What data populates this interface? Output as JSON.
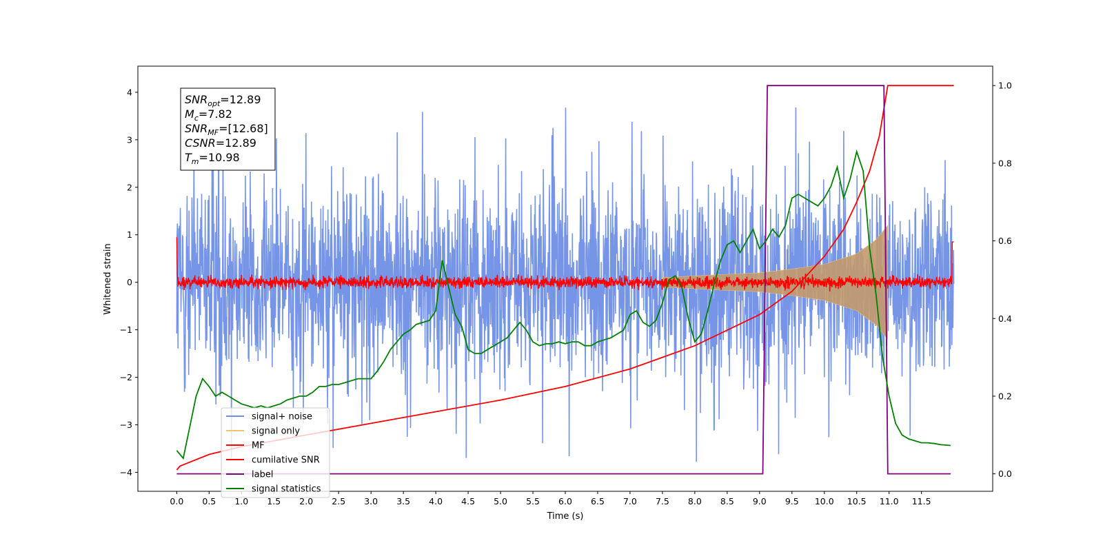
{
  "chart_data": {
    "type": "line",
    "xlabel": "Time (s)",
    "ylabel": "Whitened strain",
    "xlim": [
      -0.6,
      12.6
    ],
    "ylim": [
      -4.4,
      4.55
    ],
    "y2lim": [
      -0.045,
      1.05
    ],
    "x_ticks": [
      "0.0",
      "0.5",
      "1.0",
      "1.5",
      "2.0",
      "2.5",
      "3.0",
      "3.5",
      "4.0",
      "4.5",
      "5.0",
      "5.5",
      "6.0",
      "6.5",
      "7.0",
      "7.5",
      "8.0",
      "8.5",
      "9.0",
      "9.5",
      "10.0",
      "10.5",
      "11.0",
      "11.5"
    ],
    "y_ticks": [
      "−4",
      "−3",
      "−2",
      "−1",
      "0",
      "1",
      "2",
      "3",
      "4"
    ],
    "y2_ticks": [
      "0.0",
      "0.2",
      "0.4",
      "0.6",
      "0.8",
      "1.0"
    ],
    "grid": false,
    "legend_position": "lower-left",
    "annotation": [
      {
        "sym": "SNR",
        "sub": "opt",
        "val": "=12.89"
      },
      {
        "sym": "M",
        "sub": "c",
        "val": "=7.82"
      },
      {
        "sym": "SNR",
        "sub": "MF",
        "val": "=[12.68]"
      },
      {
        "sym": "CSNR",
        "sub": "",
        "val": "=12.89"
      },
      {
        "sym": "T",
        "sub": "m",
        "val": "=10.98"
      }
    ],
    "series": [
      {
        "name": "signal+ noise",
        "axis": "left",
        "color": "#6f8fe6",
        "desc": "noise band ~ ±2.5 with spikes to ±4, x 0–12"
      },
      {
        "name": "signal only",
        "axis": "left",
        "color": "#f5c16c",
        "envelope": [
          [
            7.5,
            0.1
          ],
          [
            8.5,
            0.17
          ],
          [
            9.0,
            0.2
          ],
          [
            9.5,
            0.28
          ],
          [
            10.0,
            0.38
          ],
          [
            10.5,
            0.6
          ],
          [
            10.8,
            0.9
          ],
          [
            10.98,
            1.2
          ]
        ]
      },
      {
        "name": "MF",
        "axis": "left",
        "color": "#ff0000",
        "desc": "noise ~ ±0.15 around 0"
      },
      {
        "name": "cumilative SNR",
        "axis": "right",
        "color": "#ff0000",
        "x": [
          0.0,
          0.05,
          0.5,
          1.0,
          2.0,
          3.0,
          4.0,
          5.0,
          6.0,
          7.0,
          7.5,
          8.0,
          8.5,
          9.0,
          9.5,
          10.0,
          10.3,
          10.5,
          10.7,
          10.85,
          10.98,
          11.0,
          12.0
        ],
        "y": [
          0.01,
          0.02,
          0.05,
          0.07,
          0.1,
          0.13,
          0.16,
          0.19,
          0.225,
          0.27,
          0.3,
          0.33,
          0.37,
          0.41,
          0.47,
          0.56,
          0.63,
          0.7,
          0.78,
          0.87,
          1.0,
          1.0,
          1.0
        ]
      },
      {
        "name": "label",
        "axis": "right",
        "color": "#800080",
        "x": [
          0.0,
          9.05,
          9.12,
          10.92,
          10.98,
          11.0,
          11.95
        ],
        "y": [
          0.0,
          0.0,
          1.0,
          1.0,
          0.0,
          0.0,
          0.0
        ]
      },
      {
        "name": "signal statistics",
        "axis": "right",
        "color": "#008000",
        "x": [
          0.0,
          0.1,
          0.2,
          0.3,
          0.4,
          0.5,
          0.6,
          0.7,
          0.8,
          0.9,
          1.0,
          1.1,
          1.2,
          1.3,
          1.4,
          1.5,
          1.6,
          1.7,
          1.8,
          1.9,
          2.0,
          2.1,
          2.2,
          2.3,
          2.4,
          2.5,
          2.6,
          2.7,
          2.8,
          2.9,
          3.0,
          3.1,
          3.2,
          3.3,
          3.4,
          3.5,
          3.6,
          3.7,
          3.8,
          3.9,
          4.0,
          4.1,
          4.2,
          4.3,
          4.4,
          4.5,
          4.6,
          4.7,
          4.8,
          4.9,
          5.0,
          5.1,
          5.2,
          5.3,
          5.4,
          5.5,
          5.6,
          5.7,
          5.8,
          5.9,
          6.0,
          6.1,
          6.2,
          6.3,
          6.4,
          6.5,
          6.6,
          6.7,
          6.8,
          6.9,
          7.0,
          7.1,
          7.2,
          7.3,
          7.4,
          7.5,
          7.6,
          7.7,
          7.8,
          7.9,
          8.0,
          8.1,
          8.2,
          8.3,
          8.4,
          8.5,
          8.6,
          8.7,
          8.8,
          8.9,
          9.0,
          9.1,
          9.2,
          9.3,
          9.4,
          9.5,
          9.6,
          9.7,
          9.8,
          9.9,
          10.0,
          10.1,
          10.2,
          10.3,
          10.4,
          10.5,
          10.6,
          10.7,
          10.8,
          10.9,
          11.0,
          11.1,
          11.2,
          11.3,
          11.4,
          11.5,
          11.6,
          11.7,
          11.8,
          11.95
        ],
        "y": [
          0.06,
          0.04,
          0.12,
          0.2,
          0.245,
          0.225,
          0.2,
          0.21,
          0.2,
          0.19,
          0.18,
          0.175,
          0.17,
          0.175,
          0.17,
          0.175,
          0.18,
          0.19,
          0.195,
          0.2,
          0.2,
          0.21,
          0.225,
          0.225,
          0.23,
          0.23,
          0.235,
          0.24,
          0.245,
          0.245,
          0.245,
          0.265,
          0.29,
          0.32,
          0.34,
          0.36,
          0.37,
          0.385,
          0.39,
          0.395,
          0.42,
          0.55,
          0.48,
          0.41,
          0.38,
          0.32,
          0.31,
          0.31,
          0.32,
          0.33,
          0.34,
          0.35,
          0.37,
          0.39,
          0.37,
          0.34,
          0.33,
          0.335,
          0.335,
          0.34,
          0.335,
          0.34,
          0.34,
          0.33,
          0.33,
          0.34,
          0.345,
          0.35,
          0.36,
          0.37,
          0.41,
          0.42,
          0.39,
          0.38,
          0.395,
          0.44,
          0.5,
          0.51,
          0.48,
          0.4,
          0.34,
          0.36,
          0.42,
          0.49,
          0.55,
          0.59,
          0.6,
          0.57,
          0.6,
          0.63,
          0.58,
          0.6,
          0.63,
          0.61,
          0.64,
          0.71,
          0.72,
          0.71,
          0.7,
          0.69,
          0.71,
          0.74,
          0.79,
          0.71,
          0.76,
          0.83,
          0.78,
          0.58,
          0.46,
          0.3,
          0.2,
          0.13,
          0.1,
          0.09,
          0.085,
          0.08,
          0.08,
          0.078,
          0.075,
          0.073
        ]
      }
    ]
  }
}
